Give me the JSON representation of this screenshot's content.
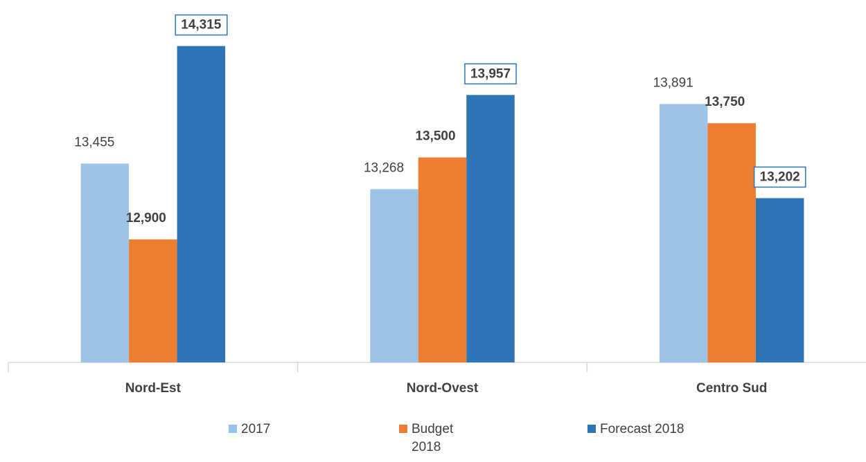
{
  "chart_data": {
    "type": "bar",
    "categories": [
      "Nord-Est",
      "Nord-Ovest",
      "Centro Sud"
    ],
    "ylim": [
      12000,
      14500
    ],
    "series": [
      {
        "name": "2017",
        "color": "#9dc3e6",
        "values": [
          13455,
          13268,
          13891
        ],
        "value_labels": [
          "13,455",
          "13,268",
          "13,891"
        ]
      },
      {
        "name": "Budget 2018",
        "color": "#ed7d31",
        "values": [
          12900,
          13500,
          13750
        ],
        "value_labels": [
          "12,900",
          "13,500",
          "13,750"
        ]
      },
      {
        "name": "Forecast 2018",
        "color": "#2e75b6",
        "values": [
          14315,
          13957,
          13202
        ],
        "value_labels": [
          "14,315",
          "13,957",
          "13,202"
        ],
        "boxed_labels": true
      }
    ]
  }
}
